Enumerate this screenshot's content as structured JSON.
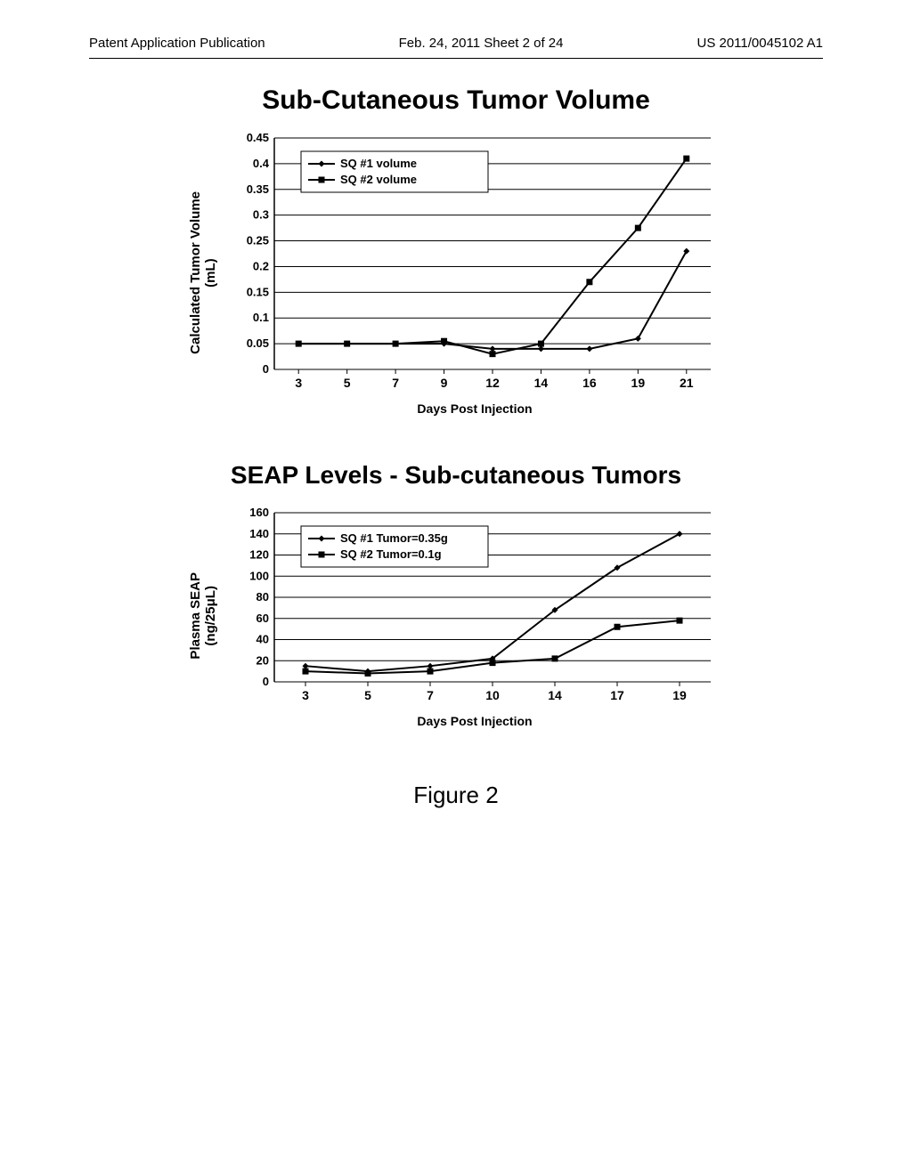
{
  "header": {
    "left": "Patent Application Publication",
    "center": "Feb. 24, 2011  Sheet 2 of 24",
    "right": "US 2011/0045102 A1"
  },
  "figure_caption": "Figure 2",
  "chart1": {
    "title": "Sub-Cutaneous Tumor Volume",
    "title_fontsize": 30,
    "ylabel": "Calculated Tumor Volume\n(mL)",
    "xlabel": "Days Post Injection",
    "xticks": [
      "3",
      "5",
      "7",
      "9",
      "12",
      "14",
      "16",
      "19",
      "21"
    ],
    "yticks": [
      "0",
      "0.05",
      "0.1",
      "0.15",
      "0.2",
      "0.25",
      "0.3",
      "0.35",
      "0.4",
      "0.45"
    ],
    "ylim": [
      0,
      0.45
    ],
    "series": [
      {
        "name": "SQ #1 volume",
        "marker": "diamond",
        "color": "#000000",
        "points": [
          0.05,
          0.05,
          0.05,
          0.05,
          0.04,
          0.04,
          0.04,
          0.06,
          0.23
        ]
      },
      {
        "name": "SQ #2 volume",
        "marker": "square",
        "color": "#000000",
        "points": [
          0.05,
          0.05,
          0.05,
          0.055,
          0.03,
          0.05,
          0.17,
          0.275,
          0.41
        ]
      }
    ],
    "plot_bg": "#ffffff",
    "grid_color": "#000000",
    "line_width": 2,
    "marker_size": 7
  },
  "chart2": {
    "title": "SEAP Levels - Sub-cutaneous Tumors",
    "title_fontsize": 28,
    "ylabel": "Plasma SEAP\n(ng/25μL)",
    "xlabel": "Days Post Injection",
    "xticks": [
      "3",
      "5",
      "7",
      "10",
      "14",
      "17",
      "19"
    ],
    "yticks": [
      "0",
      "20",
      "40",
      "60",
      "80",
      "100",
      "120",
      "140",
      "160"
    ],
    "ylim": [
      0,
      160
    ],
    "series": [
      {
        "name": "SQ #1 Tumor=0.35g",
        "marker": "diamond",
        "color": "#000000",
        "points": [
          15,
          10,
          15,
          22,
          68,
          108,
          140
        ]
      },
      {
        "name": "SQ #2 Tumor=0.1g",
        "marker": "square",
        "color": "#000000",
        "points": [
          10,
          8,
          10,
          18,
          22,
          52,
          58
        ]
      }
    ],
    "plot_bg": "#ffffff",
    "grid_color": "#000000",
    "line_width": 2,
    "marker_size": 7
  }
}
